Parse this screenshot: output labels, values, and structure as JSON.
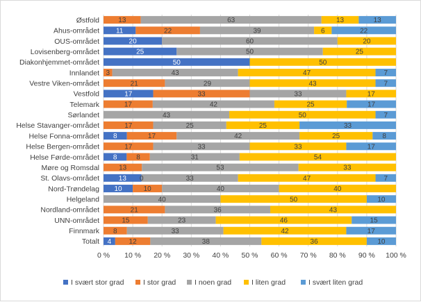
{
  "chart_data": {
    "type": "bar",
    "orientation": "horizontal",
    "stacked": "percent",
    "categories": [
      "Østfold",
      "Ahus-området",
      "OUS-området",
      "Lovisenberg-området",
      "Diakonhjemmet-området",
      "Innlandet",
      "Vestre Viken-området",
      "Vestfold",
      "Telemark",
      "Sørlandet",
      "Helse Stavanger-området",
      "Helse Fonna-området",
      "Helse Bergen-området",
      "Helse Førde-området",
      "Møre og Romsdal",
      "St. Olavs-området",
      "Nord-Trøndelag",
      "Helgeland",
      "Nordland-området",
      "UNN-området",
      "Finnmark",
      "Totalt"
    ],
    "series": [
      {
        "name": "I svært stor grad",
        "color": "#4472c4",
        "label_color": "#ffffff",
        "values": [
          0,
          11,
          20,
          25,
          50,
          0,
          0,
          17,
          0,
          0,
          0,
          8,
          0,
          8,
          0,
          13,
          10,
          0,
          0,
          0,
          0,
          4
        ]
      },
      {
        "name": "I stor grad",
        "color": "#ed7d31",
        "label_color": "#404040",
        "values": [
          13,
          22,
          0,
          0,
          0,
          3,
          21,
          33,
          17,
          0,
          17,
          17,
          17,
          8,
          13,
          0,
          10,
          0,
          21,
          15,
          8,
          12
        ]
      },
      {
        "name": "I noen grad",
        "color": "#a5a5a5",
        "label_color": "#404040",
        "values": [
          63,
          39,
          60,
          50,
          0,
          43,
          29,
          33,
          42,
          43,
          25,
          42,
          33,
          31,
          53,
          33,
          40,
          40,
          36,
          23,
          33,
          38
        ]
      },
      {
        "name": "I liten grad",
        "color": "#ffc000",
        "label_color": "#404040",
        "values": [
          13,
          6,
          20,
          25,
          50,
          47,
          43,
          17,
          25,
          50,
          25,
          25,
          33,
          54,
          33,
          47,
          40,
          50,
          43,
          46,
          42,
          36
        ]
      },
      {
        "name": "I svært liten grad",
        "color": "#5b9bd5",
        "label_color": "#404040",
        "values": [
          13,
          22,
          0,
          0,
          0,
          7,
          7,
          0,
          17,
          7,
          33,
          8,
          17,
          0,
          0,
          7,
          0,
          10,
          0,
          15,
          17,
          10
        ]
      }
    ],
    "segment_labels": [
      [
        null,
        "13",
        "63",
        "13",
        "13"
      ],
      [
        "11",
        "22",
        "39",
        "6",
        "22"
      ],
      [
        "20",
        null,
        "60",
        "20",
        null
      ],
      [
        "25",
        null,
        "50",
        "25",
        null
      ],
      [
        "50",
        null,
        null,
        "50",
        null
      ],
      [
        null,
        "3",
        "43",
        "47",
        "7"
      ],
      [
        null,
        "21",
        "29",
        "43",
        "7"
      ],
      [
        "17",
        "33",
        "33",
        "17",
        null
      ],
      [
        null,
        "17",
        "42",
        "25",
        "17"
      ],
      [
        null,
        null,
        "43",
        "50",
        "7"
      ],
      [
        null,
        "17",
        "25",
        "25",
        "33"
      ],
      [
        "8",
        "17",
        "42",
        "25",
        "8"
      ],
      [
        null,
        "17",
        "33",
        "33",
        "17"
      ],
      [
        "8",
        "8",
        "31",
        "54",
        null
      ],
      [
        null,
        "13",
        "53",
        "33",
        null
      ],
      [
        "13",
        "0",
        "33",
        "47",
        "7"
      ],
      [
        "10",
        "10",
        "40",
        "40",
        null
      ],
      [
        null,
        null,
        "40",
        "50",
        "10"
      ],
      [
        null,
        "21",
        "36",
        "43",
        null
      ],
      [
        null,
        "15",
        "23",
        "46",
        "15"
      ],
      [
        null,
        "8",
        "33",
        "42",
        "17"
      ],
      [
        "4",
        "12",
        "38",
        "36",
        "10"
      ]
    ],
    "x_ticks": [
      "0 %",
      "10 %",
      "20 %",
      "30 %",
      "40 %",
      "50 %",
      "60 %",
      "70 %",
      "80 %",
      "90 %",
      "100 %"
    ],
    "xlim": [
      0,
      100
    ],
    "grid": true,
    "legend_position": "bottom",
    "title": "",
    "xlabel": "",
    "ylabel": ""
  }
}
